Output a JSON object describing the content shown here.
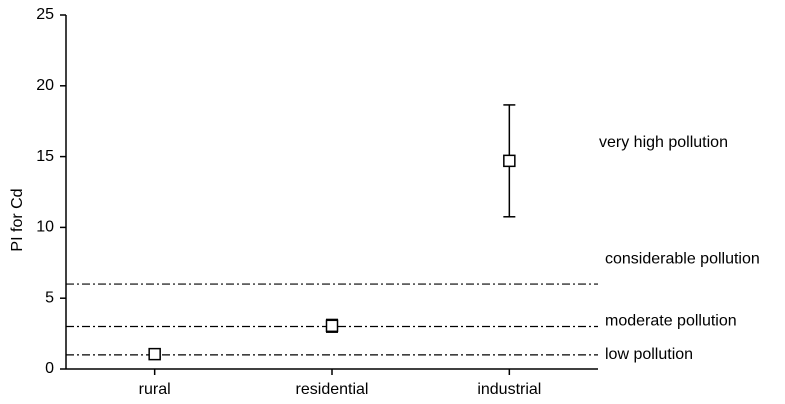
{
  "chart_data": {
    "type": "errorbar",
    "y_label": "PI for Cd",
    "categories": [
      "rural",
      "residential",
      "industrial"
    ],
    "values": [
      1.05,
      3.05,
      14.7
    ],
    "errors": [
      0.2,
      0.45,
      3.95
    ],
    "color": "#000000",
    "ylim": [
      0,
      25
    ],
    "yticks": [
      0,
      5,
      10,
      15,
      20,
      25
    ],
    "reference_lines": [
      {
        "value": 1,
        "label": "low pollution"
      },
      {
        "value": 3,
        "label": "moderate pollution"
      },
      {
        "value": 6,
        "label": "considerable pollution"
      }
    ],
    "annotations": [
      {
        "text": "very high pollution"
      }
    ]
  }
}
